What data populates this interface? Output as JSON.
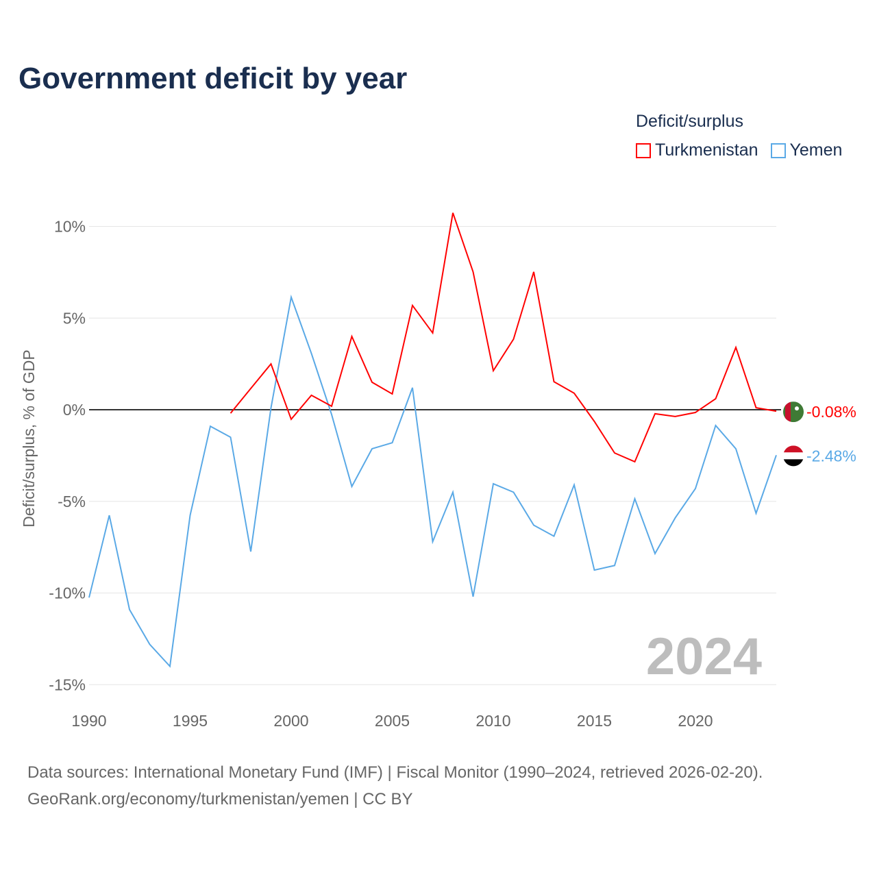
{
  "chart_data": {
    "type": "line",
    "title": "Government deficit by year",
    "ylabel": "Deficit/surplus, % of GDP",
    "xlabel": "",
    "ylim": [
      -15,
      10
    ],
    "xlim": [
      1990,
      2024
    ],
    "yticks": [
      10,
      5,
      0,
      -5,
      -10,
      -15
    ],
    "ytick_labels": [
      "10%",
      "5%",
      "0%",
      "-5%",
      "-10%",
      "-15%"
    ],
    "xticks": [
      1990,
      1995,
      2000,
      2005,
      2010,
      2015,
      2020
    ],
    "xtick_labels": [
      "1990",
      "1995",
      "2000",
      "2005",
      "2010",
      "2015",
      "2020"
    ],
    "legend_title": "Deficit/surplus",
    "legend_placement": "top-right",
    "year_label": "2024",
    "series": [
      {
        "name": "Turkmenistan",
        "color": "#ff0000",
        "end_label": "-0.08%",
        "start_year": 1997,
        "values": [
          -0.19,
          1.16,
          2.5,
          -0.52,
          0.79,
          0.19,
          4.0,
          1.5,
          0.86,
          5.69,
          4.19,
          10.74,
          7.52,
          2.13,
          3.85,
          7.52,
          1.53,
          0.9,
          -0.64,
          -2.36,
          -2.84,
          -0.22,
          -0.37,
          -0.15,
          0.6,
          3.4,
          0.11,
          -0.08
        ]
      },
      {
        "name": "Yemen",
        "color": "#5aa9e6",
        "end_label": "-2.48%",
        "start_year": 1990,
        "values": [
          -10.25,
          -5.76,
          -10.9,
          -12.8,
          -14.0,
          -5.76,
          -0.9,
          -1.5,
          -7.74,
          0.1,
          6.14,
          3.07,
          -0.26,
          -4.19,
          -2.13,
          -1.8,
          1.2,
          -7.2,
          -4.5,
          -10.2,
          -4.04,
          -4.5,
          -6.3,
          -6.9,
          -4.1,
          -8.75,
          -8.5,
          -4.86,
          -7.85,
          -5.9,
          -4.3,
          -0.86,
          -2.13,
          -5.65,
          -2.48
        ]
      }
    ]
  },
  "source_line1": "Data sources: International Monetary Fund (IMF) | Fiscal Monitor (1990–2024, retrieved 2026-02-20).",
  "source_line2": "GeoRank.org/economy/turkmenistan/yemen | CC BY"
}
